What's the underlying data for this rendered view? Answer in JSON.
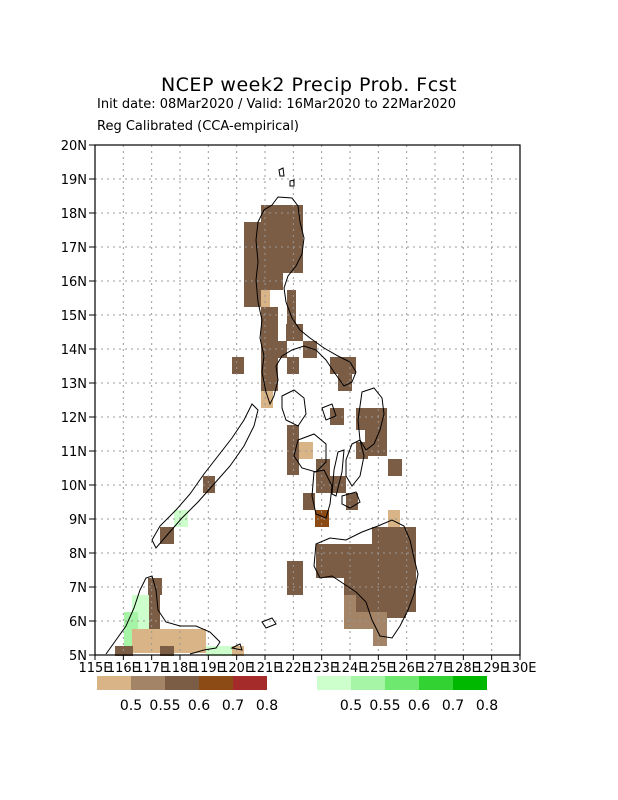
{
  "title": "NCEP week2 Precip Prob. Fcst",
  "subtitle1": "Init date: 08Mar2020 / Valid: 16Mar2020 to 22Mar2020",
  "subtitle2": "Reg Calibrated (CCA-empirical)",
  "lat_labels": [
    "5N",
    "6N",
    "7N",
    "8N",
    "9N",
    "10N",
    "11N",
    "12N",
    "13N",
    "14N",
    "15N",
    "16N",
    "17N",
    "18N",
    "19N",
    "20N"
  ],
  "lon_labels": [
    "115E",
    "116E",
    "117E",
    "118E",
    "119E",
    "120E",
    "121E",
    "122E",
    "123E",
    "124E",
    "125E",
    "126E",
    "127E",
    "128E",
    "129E",
    "130E"
  ],
  "dry_legend": {
    "colors": [
      "#d9b487",
      "#a48466",
      "#7b5c44",
      "#8c4a14",
      "#a52a2a"
    ],
    "labels": [
      "0.5",
      "0.55",
      "0.6",
      "0.7",
      "0.8"
    ]
  },
  "wet_legend": {
    "colors": [
      "#ccffcc",
      "#a6f5a6",
      "#6ee86e",
      "#33d233",
      "#00b800"
    ],
    "labels": [
      "0.5",
      "0.55",
      "0.6",
      "0.7",
      "0.8"
    ]
  }
}
